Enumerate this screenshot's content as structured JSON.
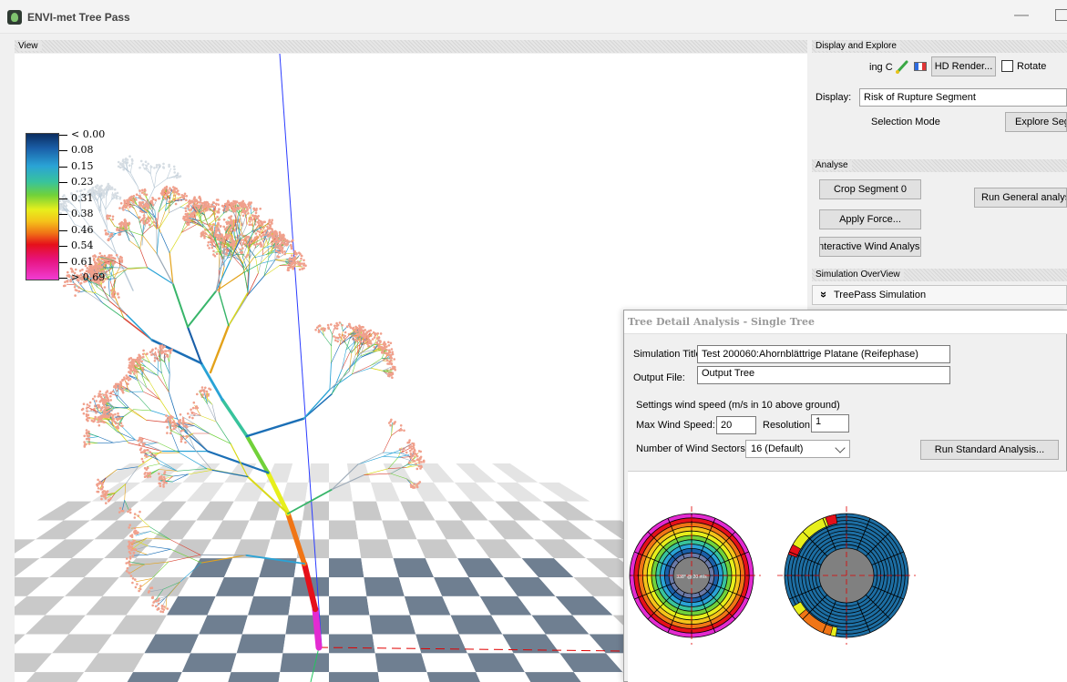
{
  "window": {
    "title": "ENVI-met Tree Pass",
    "minimize_glyph": "—"
  },
  "view": {
    "header": "View",
    "legend": {
      "labels": [
        "< 0.00",
        "0.08",
        "0.15",
        "0.23",
        "0.31",
        "0.38",
        "0.46",
        "0.54",
        "0.61",
        "> 0.69"
      ]
    }
  },
  "display_explore": {
    "header": "Display and Explore",
    "partial_label": "ing C",
    "hd_render_label": "HD Render...",
    "rotate_label": "Rotate",
    "rotate_checked": false,
    "display_label": "Display:",
    "display_value": "Risk of Rupture Segment",
    "selection_mode_label": "Selection Mode",
    "explore_button": "Explore Segr"
  },
  "analyse": {
    "header": "Analyse",
    "crop_button": "Crop Segment 0",
    "run_general_button": "Run General analysis.",
    "apply_force_button": "Apply Force...",
    "interactive_wind_button": "Interactive Wind Analysis.."
  },
  "simulation_overview": {
    "header": "Simulation OverView",
    "item": "TreePass Simulation",
    "expand_glyph": "»"
  },
  "dialog": {
    "title": "Tree Detail Analysis - Single Tree",
    "simulation_title_label": "Simulation Title:",
    "simulation_title_value": "Test 200060:Ahornblättrige Platane (Reifephase)",
    "output_file_label": "Output File:",
    "output_file_value": "Output Tree",
    "settings_text": "Settings wind speed (m/s in 10 above ground)",
    "max_wind_label": "Max Wind Speed:",
    "max_wind_value": "20",
    "resolution_label": "Resolution:",
    "resolution_value": "1",
    "sectors_label": "Number of Wind Sectors:",
    "sectors_value": "16 (Default)",
    "run_standard_button": "Run Standard Analysis...",
    "polar1_center_label": "338° @ 20 m/s"
  },
  "colors": {
    "accent_header": "#e6e6e6",
    "grid_dark": "#6f7f91",
    "grid_light": "#c9c9c9",
    "axis_blue": "#2b3cff",
    "axis_red": "#e00000"
  }
}
